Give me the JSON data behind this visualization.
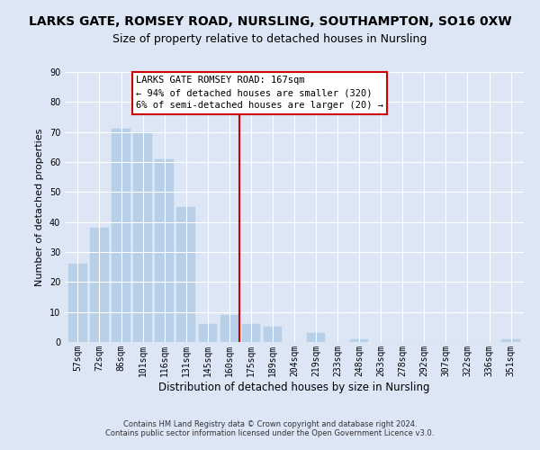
{
  "title": "LARKS GATE, ROMSEY ROAD, NURSLING, SOUTHAMPTON, SO16 0XW",
  "subtitle": "Size of property relative to detached houses in Nursling",
  "xlabel": "Distribution of detached houses by size in Nursling",
  "ylabel": "Number of detached properties",
  "bar_labels": [
    "57sqm",
    "72sqm",
    "86sqm",
    "101sqm",
    "116sqm",
    "131sqm",
    "145sqm",
    "160sqm",
    "175sqm",
    "189sqm",
    "204sqm",
    "219sqm",
    "233sqm",
    "248sqm",
    "263sqm",
    "278sqm",
    "292sqm",
    "307sqm",
    "322sqm",
    "336sqm",
    "351sqm"
  ],
  "bar_heights": [
    26,
    38,
    71,
    70,
    61,
    45,
    6,
    9,
    6,
    5,
    0,
    3,
    0,
    1,
    0,
    0,
    0,
    0,
    0,
    0,
    1
  ],
  "bar_color": "#b8cfe8",
  "bar_edge_color": "#b8cfe8",
  "vline_color": "#cc0000",
  "ylim": [
    0,
    90
  ],
  "yticks": [
    0,
    10,
    20,
    30,
    40,
    50,
    60,
    70,
    80,
    90
  ],
  "annotation_title": "LARKS GATE ROMSEY ROAD: 167sqm",
  "annotation_line1": "← 94% of detached houses are smaller (320)",
  "annotation_line2": "6% of semi-detached houses are larger (20) →",
  "annotation_box_edge": "#cc0000",
  "footer1": "Contains HM Land Registry data © Crown copyright and database right 2024.",
  "footer2": "Contains public sector information licensed under the Open Government Licence v3.0.",
  "bg_color": "#dce6f5",
  "plot_bg_color": "#dce6f5",
  "grid_color": "#ffffff",
  "title_fontsize": 10,
  "subtitle_fontsize": 9,
  "xlabel_fontsize": 8.5,
  "ylabel_fontsize": 8,
  "annot_fontsize": 7.5,
  "footer_fontsize": 6,
  "tick_fontsize": 7
}
